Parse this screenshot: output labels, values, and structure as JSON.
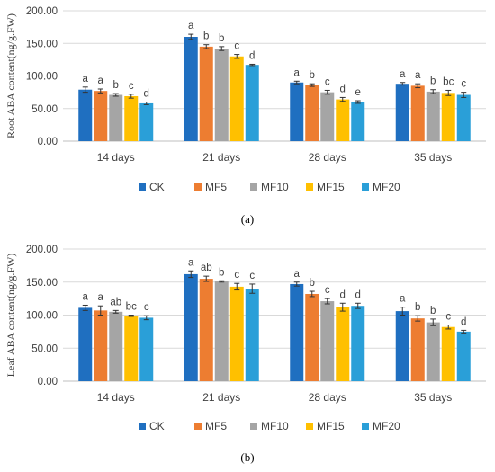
{
  "colors": {
    "CK": "#1f6fc0",
    "MF5": "#ed7d31",
    "MF10": "#a5a5a5",
    "MF15": "#ffc000",
    "MF20": "#2a9fd8"
  },
  "chart_data": [
    {
      "type": "bar",
      "panel_label": "(a)",
      "ylabel": "Root ABA content(ng/g.FW)",
      "ylim": [
        0,
        200
      ],
      "yticks": [
        "0.00",
        "50.00",
        "100.00",
        "150.00",
        "200.00"
      ],
      "ytick_values": [
        0,
        50,
        100,
        150,
        200
      ],
      "categories": [
        "14 days",
        "21 days",
        "28 days",
        "35 days"
      ],
      "legend_position": "bottom",
      "grid": true,
      "series": [
        {
          "name": "CK",
          "values": [
            79,
            160,
            90,
            88
          ],
          "errors": [
            4,
            4,
            2,
            2
          ],
          "letters": [
            "a",
            "a",
            "a",
            "a"
          ]
        },
        {
          "name": "MF5",
          "values": [
            77,
            145,
            86,
            85
          ],
          "errors": [
            3,
            3,
            2,
            3
          ],
          "letters": [
            "a",
            "b",
            "b",
            "a"
          ]
        },
        {
          "name": "MF10",
          "values": [
            71,
            142,
            75,
            76
          ],
          "errors": [
            2,
            3,
            3,
            3
          ],
          "letters": [
            "b",
            "b",
            "c",
            "b"
          ]
        },
        {
          "name": "MF15",
          "values": [
            69,
            130,
            64,
            74
          ],
          "errors": [
            3,
            3,
            3,
            4
          ],
          "letters": [
            "c",
            "c",
            "d",
            "bc"
          ]
        },
        {
          "name": "MF20",
          "values": [
            58,
            117,
            60,
            71
          ],
          "errors": [
            2,
            1,
            2,
            4
          ],
          "letters": [
            "d",
            "d",
            "e",
            "c"
          ]
        }
      ]
    },
    {
      "type": "bar",
      "panel_label": "(b)",
      "ylabel": "Leaf ABA content(ng/g.FW)",
      "ylim": [
        0,
        200
      ],
      "yticks": [
        "0.00",
        "50.00",
        "100.00",
        "150.00",
        "200.00"
      ],
      "ytick_values": [
        0,
        50,
        100,
        150,
        200
      ],
      "categories": [
        "14 days",
        "21 days",
        "28 days",
        "35 days"
      ],
      "legend_position": "bottom",
      "grid": true,
      "series": [
        {
          "name": "CK",
          "values": [
            111,
            162,
            147,
            106
          ],
          "errors": [
            4,
            5,
            3,
            6
          ],
          "letters": [
            "a",
            "a",
            "a",
            "a"
          ]
        },
        {
          "name": "MF5",
          "values": [
            107,
            155,
            132,
            95
          ],
          "errors": [
            7,
            4,
            4,
            4
          ],
          "letters": [
            "a",
            "ab",
            "b",
            "b"
          ]
        },
        {
          "name": "MF10",
          "values": [
            105,
            151,
            121,
            89
          ],
          "errors": [
            2,
            1,
            4,
            5
          ],
          "letters": [
            "ab",
            "b",
            "c",
            "b"
          ]
        },
        {
          "name": "MF15",
          "values": [
            99,
            143,
            112,
            82
          ],
          "errors": [
            1,
            5,
            6,
            3
          ],
          "letters": [
            "bc",
            "c",
            "d",
            "c"
          ]
        },
        {
          "name": "MF20",
          "values": [
            96,
            140,
            114,
            75
          ],
          "errors": [
            3,
            7,
            4,
            2
          ],
          "letters": [
            "c",
            "c",
            "d",
            "d"
          ]
        }
      ]
    }
  ]
}
